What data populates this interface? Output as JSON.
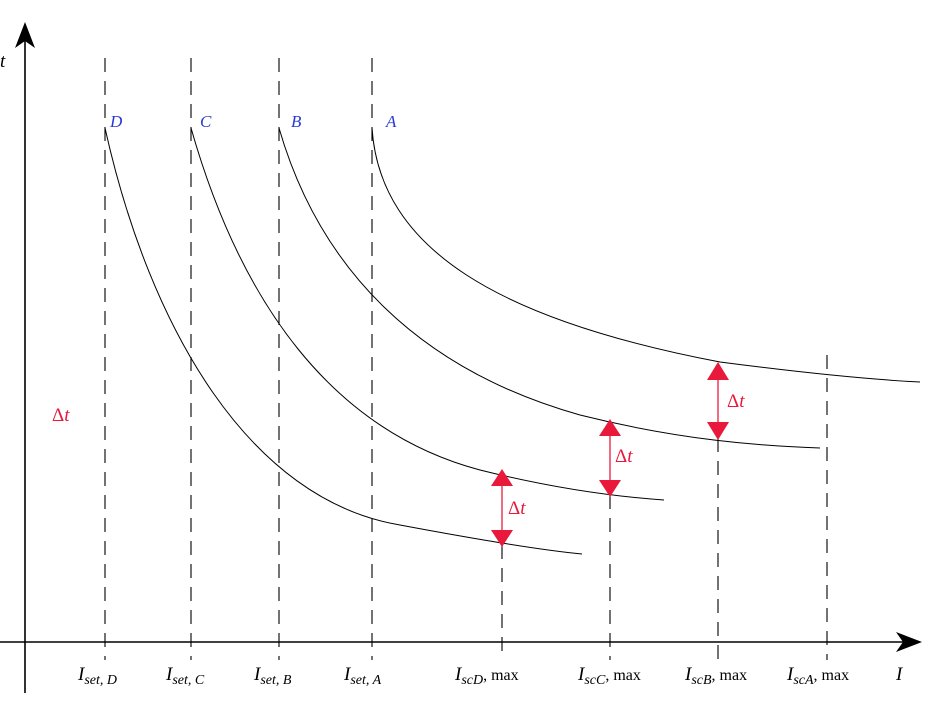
{
  "axes": {
    "y_label": "t",
    "x_label": "I"
  },
  "colors": {
    "curve_label": "#2a3ad0",
    "delta": "#e8193b",
    "line": "#000000"
  },
  "curves": [
    {
      "label": "D"
    },
    {
      "label": "C"
    },
    {
      "label": "B"
    },
    {
      "label": "A"
    }
  ],
  "set_labels": [
    {
      "main": "I",
      "sub": "set",
      "suffix": ", D"
    },
    {
      "main": "I",
      "sub": "set",
      "suffix": ", C"
    },
    {
      "main": "I",
      "sub": "set",
      "suffix": ", B"
    },
    {
      "main": "I",
      "sub": "set",
      "suffix": ", A"
    }
  ],
  "sc_labels": [
    {
      "main": "I",
      "sub": "scD",
      "suffix": ", max"
    },
    {
      "main": "I",
      "sub": "scC",
      "suffix": ", max"
    },
    {
      "main": "I",
      "sub": "scB",
      "suffix": ", max"
    },
    {
      "main": "I",
      "sub": "scA",
      "suffix": ", max"
    }
  ],
  "delta": {
    "symbol": "Δ",
    "var": "t"
  }
}
